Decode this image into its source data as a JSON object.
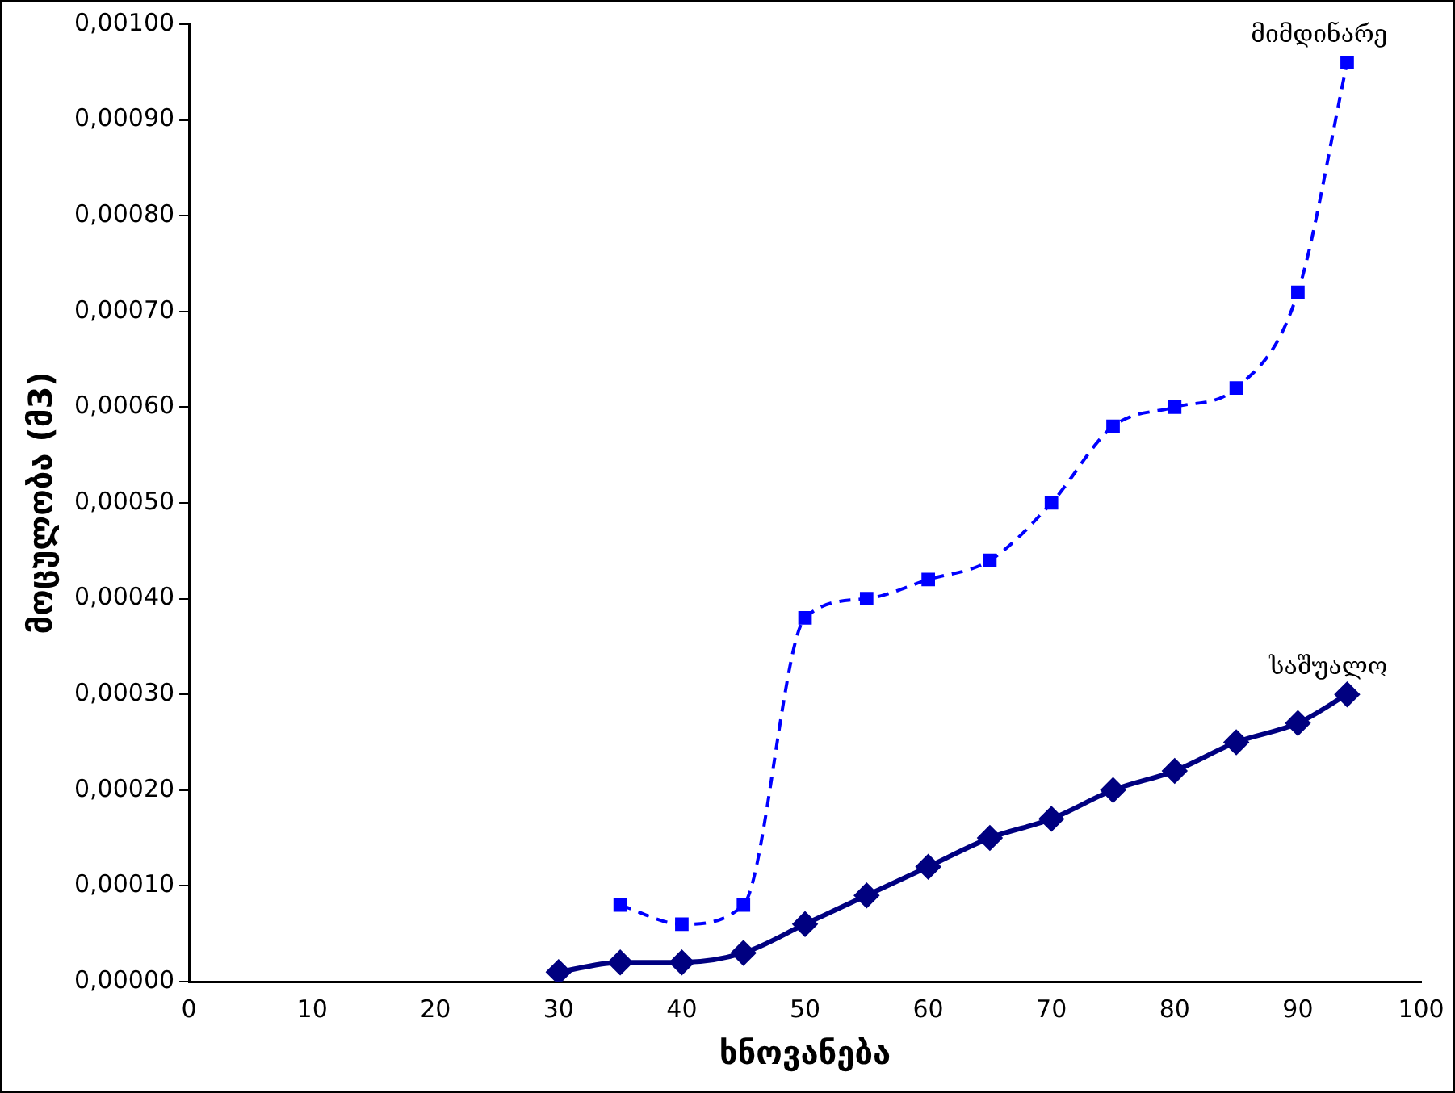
{
  "chart_data": {
    "type": "line",
    "xlabel": "ხნოვანება",
    "ylabel": "მოცულობა (მ3)",
    "xlim": [
      0,
      100
    ],
    "xticks": [
      0,
      10,
      20,
      30,
      40,
      50,
      60,
      70,
      80,
      90,
      100
    ],
    "ylim": [
      0,
      0.001
    ],
    "yticks": [
      {
        "value": 0,
        "label": "0,00000"
      },
      {
        "value": 0.0001,
        "label": "0,00010"
      },
      {
        "value": 0.0002,
        "label": "0,00020"
      },
      {
        "value": 0.0003,
        "label": "0,00030"
      },
      {
        "value": 0.0004,
        "label": "0,00040"
      },
      {
        "value": 0.0005,
        "label": "0,00050"
      },
      {
        "value": 0.0006,
        "label": "0,00060"
      },
      {
        "value": 0.0007,
        "label": "0,00070"
      },
      {
        "value": 0.0008,
        "label": "0,00080"
      },
      {
        "value": 0.0009,
        "label": "0,00090"
      },
      {
        "value": 0.001,
        "label": "0,00100"
      }
    ],
    "grid": false,
    "legend": false,
    "series": [
      {
        "name": "მიმდინარე",
        "color": "#0000ff",
        "marker": "square",
        "line_style": "dashed",
        "x": [
          35,
          40,
          45,
          50,
          55,
          60,
          65,
          70,
          75,
          80,
          85,
          90,
          94
        ],
        "values": [
          8e-05,
          6e-05,
          8e-05,
          0.00038,
          0.0004,
          0.00042,
          0.00044,
          0.0005,
          0.00058,
          0.0006,
          0.00062,
          0.00072,
          0.00096
        ]
      },
      {
        "name": "საშუალო",
        "color": "#000080",
        "marker": "diamond",
        "line_style": "solid",
        "x": [
          30,
          35,
          40,
          45,
          50,
          55,
          60,
          65,
          70,
          75,
          80,
          85,
          90,
          94
        ],
        "values": [
          1e-05,
          2e-05,
          2e-05,
          3e-05,
          6e-05,
          9e-05,
          0.00012,
          0.00015,
          0.00017,
          0.0002,
          0.00022,
          0.00025,
          0.00027,
          0.0003
        ]
      }
    ]
  }
}
